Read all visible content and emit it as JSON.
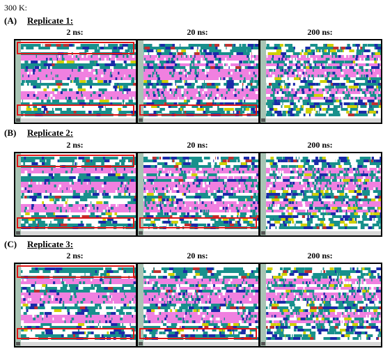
{
  "figure": {
    "temperature_label": "300 K:",
    "time_labels": [
      "2 ns:",
      "20 ns:",
      "200 ns:"
    ],
    "panels": [
      {
        "letter": "(A)",
        "title": "Replicate 1:"
      },
      {
        "letter": "(B)",
        "title": "Replicate 2:"
      },
      {
        "letter": "(C)",
        "title": "Replicate 3:"
      }
    ]
  },
  "colors": {
    "helix": "#f080e0",
    "turn": "#18908c",
    "coil": "#ffffff",
    "three_ten_helix": "#1a2aa8",
    "pi_helix": "#c03030",
    "bridge": "#d0d000",
    "highlight_box": "#e01515",
    "axis_strip": "#a8c4b4"
  },
  "chart_data": [
    {
      "type": "heatmap",
      "panel": "(A)",
      "replicate": "Replicate 1",
      "time": "2 ns",
      "helix_fraction": 0.55,
      "coil_fraction": 0.3,
      "turn_fraction": 0.13,
      "highlight_boxes": 2
    },
    {
      "type": "heatmap",
      "panel": "(A)",
      "replicate": "Replicate 1",
      "time": "20 ns",
      "helix_fraction": 0.5,
      "coil_fraction": 0.3,
      "turn_fraction": 0.15,
      "highlight_boxes": 1
    },
    {
      "type": "heatmap",
      "panel": "(A)",
      "replicate": "Replicate 1",
      "time": "200 ns",
      "helix_fraction": 0.45,
      "coil_fraction": 0.35,
      "turn_fraction": 0.17,
      "highlight_boxes": 0
    },
    {
      "type": "heatmap",
      "panel": "(B)",
      "replicate": "Replicate 2",
      "time": "2 ns",
      "helix_fraction": 0.5,
      "coil_fraction": 0.3,
      "turn_fraction": 0.16,
      "highlight_boxes": 2
    },
    {
      "type": "heatmap",
      "panel": "(B)",
      "replicate": "Replicate 2",
      "time": "20 ns",
      "helix_fraction": 0.45,
      "coil_fraction": 0.35,
      "turn_fraction": 0.16,
      "highlight_boxes": 1
    },
    {
      "type": "heatmap",
      "panel": "(B)",
      "replicate": "Replicate 2",
      "time": "200 ns",
      "helix_fraction": 0.4,
      "coil_fraction": 0.4,
      "turn_fraction": 0.17,
      "highlight_boxes": 0
    },
    {
      "type": "heatmap",
      "panel": "(C)",
      "replicate": "Replicate 3",
      "time": "2 ns",
      "helix_fraction": 0.5,
      "coil_fraction": 0.3,
      "turn_fraction": 0.16,
      "highlight_boxes": 2
    },
    {
      "type": "heatmap",
      "panel": "(C)",
      "replicate": "Replicate 3",
      "time": "20 ns",
      "helix_fraction": 0.45,
      "coil_fraction": 0.35,
      "turn_fraction": 0.16,
      "highlight_boxes": 1
    },
    {
      "type": "heatmap",
      "panel": "(C)",
      "replicate": "Replicate 3",
      "time": "200 ns",
      "helix_fraction": 0.35,
      "coil_fraction": 0.4,
      "turn_fraction": 0.2,
      "highlight_boxes": 0
    }
  ]
}
